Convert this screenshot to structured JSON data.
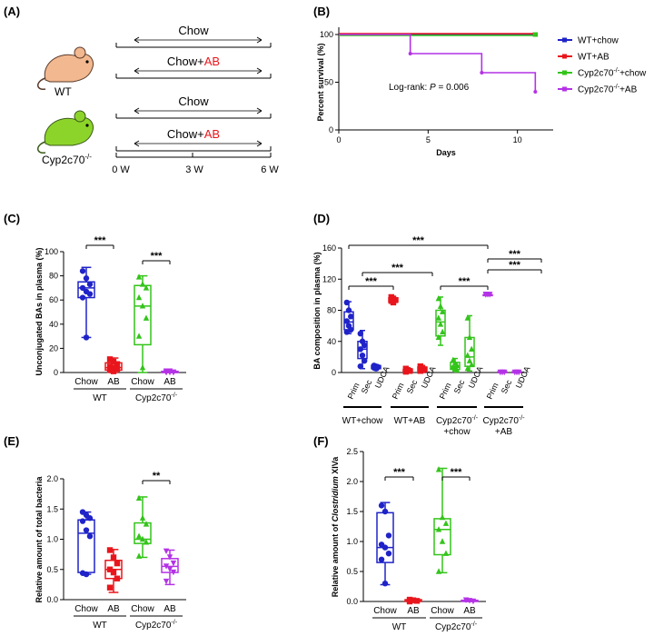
{
  "panel_labels": {
    "a": "(A)",
    "b": "(B)",
    "c": "(C)",
    "d": "(D)",
    "e": "(E)",
    "f": "(F)"
  },
  "colors": {
    "blue": "#1f23c8",
    "red": "#e8161c",
    "green": "#33c41a",
    "purple": "#b432e6",
    "mouse_wt": "#f2b88f",
    "mouse_ko": "#8dd42a"
  },
  "panelA": {
    "mouse_wt_label": "WT",
    "mouse_ko_label": "Cyp2c70",
    "mouse_ko_sup": "-/-",
    "rows": [
      {
        "pre": "Chow",
        "ab": ""
      },
      {
        "pre": "Chow+",
        "ab": "AB"
      },
      {
        "pre": "Chow",
        "ab": ""
      },
      {
        "pre": "Chow+",
        "ab": "AB"
      }
    ],
    "timeline": [
      "0 W",
      "3 W",
      "6 W"
    ]
  },
  "chart_data": [
    {
      "id": "B",
      "type": "line",
      "ylabel": "Percent survival (%)",
      "xlabel": "Days",
      "xlim": [
        0,
        12
      ],
      "ylim": [
        0,
        100
      ],
      "xticks": [
        "0",
        "5",
        "10"
      ],
      "yticks": [
        "0",
        "50",
        "100"
      ],
      "annotation_text": "Log-rank: ",
      "annotation_p": "P",
      "annotation_val": " = 0.006",
      "legend": [
        {
          "name": "WT+chow",
          "color": "#1f23c8"
        },
        {
          "name": "WT+AB",
          "color": "#e8161c"
        },
        {
          "name": "Cyp2c70",
          "sup": "-/-",
          "suffix": "+chow",
          "color": "#33c41a"
        },
        {
          "name": "Cyp2c70",
          "sup": "-/-",
          "suffix": "+AB",
          "color": "#b432e6"
        }
      ],
      "series": [
        {
          "name": "WT+chow",
          "color": "#1f23c8",
          "x": [
            0,
            11
          ],
          "y": [
            100,
            100
          ]
        },
        {
          "name": "WT+AB",
          "color": "#e8161c",
          "x": [
            0,
            11
          ],
          "y": [
            100,
            100
          ]
        },
        {
          "name": "Cyp2c70-/-+chow",
          "color": "#33c41a",
          "x": [
            0,
            11
          ],
          "y": [
            100,
            100
          ]
        },
        {
          "name": "Cyp2c70-/-+AB",
          "color": "#b432e6",
          "x": [
            0,
            4,
            4,
            8,
            8,
            11,
            11
          ],
          "y": [
            100,
            100,
            80,
            80,
            60,
            60,
            40
          ]
        }
      ]
    },
    {
      "id": "C",
      "type": "box",
      "ylabel": "Unconjugated BAs in plasma (%)",
      "ylim": [
        0,
        100
      ],
      "yticks": [
        "0",
        "20",
        "40",
        "60",
        "80",
        "100"
      ],
      "categories": [
        "Chow",
        "AB",
        "Chow",
        "AB"
      ],
      "groups": [
        "WT",
        "Cyp2c70"
      ],
      "group_sup": "-/-",
      "significance": [
        "***",
        "***"
      ],
      "boxes": [
        {
          "color": "#1f23c8",
          "marker": "circle",
          "min": 29,
          "q1": 62,
          "med": 70,
          "q3": 75,
          "max": 87,
          "points": [
            84,
            78,
            73,
            70,
            67,
            65,
            62,
            29
          ]
        },
        {
          "color": "#e8161c",
          "marker": "square",
          "min": 0,
          "q1": 2,
          "med": 4,
          "q3": 8,
          "max": 12,
          "points": [
            11,
            9,
            7,
            5,
            4,
            3,
            2,
            1
          ]
        },
        {
          "color": "#33c41a",
          "marker": "triangle",
          "min": 0,
          "q1": 23,
          "med": 55,
          "q3": 72,
          "max": 80,
          "points": [
            79,
            73,
            70,
            62,
            55,
            45,
            30,
            4
          ]
        },
        {
          "color": "#b432e6",
          "marker": "triangle-down",
          "min": 0,
          "q1": 0,
          "med": 0,
          "q3": 1,
          "max": 1,
          "points": [
            1,
            1,
            0,
            0,
            0,
            0,
            0
          ]
        }
      ]
    },
    {
      "id": "D",
      "type": "box",
      "ylabel": "BA composition in plasma (%)",
      "ylim": [
        0,
        160
      ],
      "yticks": [
        "0",
        "40",
        "80",
        "120",
        "160"
      ],
      "categories": [
        "Prim",
        "Sec",
        "UDCA",
        "Prim",
        "Sec",
        "UDCA",
        "Prim",
        "Sec",
        "UDCA",
        "Prim",
        "Sec",
        "UDCA"
      ],
      "significance": [
        "***",
        "***",
        "***",
        "***",
        "***",
        "***"
      ],
      "group_labels": [
        {
          "l1": "WT+chow",
          "l2": ""
        },
        {
          "l1": "WT+AB",
          "l2": ""
        },
        {
          "l1": "Cyp2c70",
          "sup": "-/-",
          "l2": "+chow"
        },
        {
          "l1": "Cyp2c70",
          "sup": "-/-",
          "l2": "+AB"
        }
      ],
      "boxes": [
        {
          "color": "#1f23c8",
          "marker": "circle",
          "min": 50,
          "q1": 55,
          "med": 65,
          "q3": 78,
          "max": 91,
          "points": [
            90,
            80,
            72,
            66,
            60,
            55,
            52
          ]
        },
        {
          "color": "#1f23c8",
          "marker": "circle",
          "min": 5,
          "q1": 18,
          "med": 30,
          "q3": 40,
          "max": 54,
          "points": [
            50,
            40,
            35,
            30,
            22,
            15,
            8
          ]
        },
        {
          "color": "#1f23c8",
          "marker": "circle",
          "min": 3,
          "q1": 5,
          "med": 7,
          "q3": 9,
          "max": 10,
          "points": [
            9,
            8,
            7,
            6,
            5
          ]
        },
        {
          "color": "#e8161c",
          "marker": "square",
          "min": 88,
          "q1": 91,
          "med": 93,
          "q3": 96,
          "max": 98,
          "points": [
            97,
            95,
            93,
            92,
            90
          ]
        },
        {
          "color": "#e8161c",
          "marker": "square",
          "min": 0,
          "q1": 1,
          "med": 2,
          "q3": 4,
          "max": 6,
          "points": [
            5,
            3,
            2,
            1
          ]
        },
        {
          "color": "#e8161c",
          "marker": "square",
          "min": 0,
          "q1": 2,
          "med": 4,
          "q3": 7,
          "max": 9,
          "points": [
            8,
            6,
            4,
            2
          ]
        },
        {
          "color": "#33c41a",
          "marker": "triangle",
          "min": 35,
          "q1": 47,
          "med": 65,
          "q3": 80,
          "max": 97,
          "points": [
            95,
            85,
            78,
            70,
            62,
            52,
            45
          ]
        },
        {
          "color": "#33c41a",
          "marker": "triangle",
          "min": 2,
          "q1": 4,
          "med": 8,
          "q3": 13,
          "max": 18,
          "points": [
            16,
            12,
            9,
            7,
            5,
            3
          ]
        },
        {
          "color": "#33c41a",
          "marker": "triangle",
          "min": 2,
          "q1": 8,
          "med": 20,
          "q3": 45,
          "max": 73,
          "points": [
            70,
            45,
            30,
            22,
            15,
            10,
            5
          ]
        },
        {
          "color": "#b432e6",
          "marker": "triangle-down",
          "min": 99,
          "q1": 100,
          "med": 100,
          "q3": 100,
          "max": 100,
          "points": [
            100,
            100,
            100,
            100
          ]
        },
        {
          "color": "#b432e6",
          "marker": "triangle-down",
          "min": 0,
          "q1": 0,
          "med": 0,
          "q3": 1,
          "max": 1,
          "points": [
            0,
            0,
            0
          ]
        },
        {
          "color": "#b432e6",
          "marker": "triangle-down",
          "min": 0,
          "q1": 0,
          "med": 0,
          "q3": 1,
          "max": 1,
          "points": [
            0,
            0,
            0
          ]
        }
      ]
    },
    {
      "id": "E",
      "type": "box",
      "ylabel": "Relative amount of total bacteria",
      "ylim": [
        0,
        2.0
      ],
      "yticks": [
        "0.0",
        "0.5",
        "1.0",
        "1.5",
        "2.0"
      ],
      "categories": [
        "Chow",
        "AB",
        "Chow",
        "AB"
      ],
      "groups": [
        "WT",
        "Cyp2c70"
      ],
      "group_sup": "-/-",
      "significance": [
        "**"
      ],
      "boxes": [
        {
          "color": "#1f23c8",
          "marker": "circle",
          "min": 0.42,
          "q1": 0.45,
          "med": 1.1,
          "q3": 1.32,
          "max": 1.45,
          "points": [
            1.45,
            1.4,
            1.35,
            1.3,
            1.15,
            1.05,
            0.44,
            0.42
          ]
        },
        {
          "color": "#e8161c",
          "marker": "square",
          "min": 0.12,
          "q1": 0.35,
          "med": 0.5,
          "q3": 0.65,
          "max": 0.83,
          "points": [
            0.82,
            0.7,
            0.6,
            0.5,
            0.45,
            0.35,
            0.2
          ]
        },
        {
          "color": "#33c41a",
          "marker": "triangle",
          "min": 0.7,
          "q1": 0.93,
          "med": 1.0,
          "q3": 1.27,
          "max": 1.7,
          "points": [
            1.68,
            1.35,
            1.25,
            1.05,
            1.0,
            0.95,
            0.72
          ]
        },
        {
          "color": "#b432e6",
          "marker": "triangle-down",
          "min": 0.25,
          "q1": 0.45,
          "med": 0.55,
          "q3": 0.68,
          "max": 0.82,
          "points": [
            0.8,
            0.7,
            0.6,
            0.55,
            0.5,
            0.45,
            0.3
          ]
        }
      ]
    },
    {
      "id": "F",
      "type": "box",
      "ylabel": "Relative amount of ",
      "ylabel_italic": "Clostridium",
      "ylabel_tail": " XIVa",
      "ylim": [
        0,
        2.5
      ],
      "yticks": [
        "0.0",
        "0.5",
        "1.0",
        "1.5",
        "2.0",
        "2.5"
      ],
      "categories": [
        "Chow",
        "AB",
        "Chow",
        "AB"
      ],
      "groups": [
        "WT",
        "Cyp2c70"
      ],
      "group_sup": "-/-",
      "significance": [
        "***",
        "***"
      ],
      "boxes": [
        {
          "color": "#1f23c8",
          "marker": "circle",
          "min": 0.28,
          "q1": 0.65,
          "med": 0.9,
          "q3": 1.48,
          "max": 1.65,
          "points": [
            1.6,
            1.5,
            1.1,
            0.95,
            0.9,
            0.8,
            0.7,
            0.3
          ]
        },
        {
          "color": "#e8161c",
          "marker": "square",
          "min": 0,
          "q1": 0,
          "med": 0.02,
          "q3": 0.03,
          "max": 0.04,
          "points": [
            0.03,
            0.02,
            0.01,
            0.0
          ]
        },
        {
          "color": "#33c41a",
          "marker": "triangle",
          "min": 0.48,
          "q1": 0.78,
          "med": 1.2,
          "q3": 1.38,
          "max": 2.22,
          "points": [
            2.2,
            1.4,
            1.3,
            1.2,
            1.0,
            0.8,
            0.5
          ]
        },
        {
          "color": "#b432e6",
          "marker": "triangle-down",
          "min": 0,
          "q1": 0,
          "med": 0.01,
          "q3": 0.02,
          "max": 0.03,
          "points": [
            0.02,
            0.01,
            0.0
          ]
        }
      ]
    }
  ]
}
